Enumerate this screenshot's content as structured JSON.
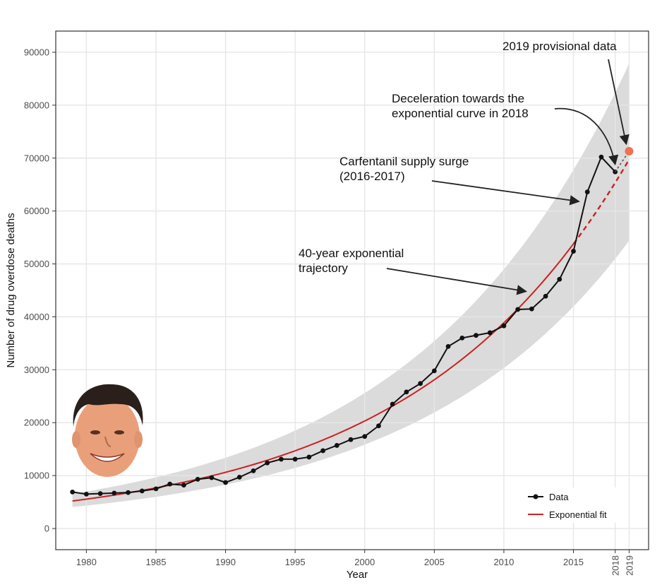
{
  "chart_data": {
    "type": "line",
    "xlabel": "Year",
    "ylabel": "Number of drug overdose deaths",
    "xlim": [
      1977.8,
      2020.4
    ],
    "ylim": [
      -4000,
      94000
    ],
    "x_ticks": [
      1980,
      1985,
      1990,
      1995,
      2000,
      2005,
      2010,
      2015
    ],
    "x_ticks_rotated": [
      2018,
      2019
    ],
    "y_ticks": [
      0,
      10000,
      20000,
      30000,
      40000,
      50000,
      60000,
      70000,
      80000,
      90000
    ],
    "grid": true,
    "legend_position": "bottom-right",
    "series": [
      {
        "name": "Data",
        "color": "#111111",
        "x": [
          1979,
          1980,
          1981,
          1982,
          1983,
          1984,
          1985,
          1986,
          1987,
          1988,
          1989,
          1990,
          1991,
          1992,
          1993,
          1994,
          1995,
          1996,
          1997,
          1998,
          1999,
          2000,
          2001,
          2002,
          2003,
          2004,
          2005,
          2006,
          2007,
          2008,
          2009,
          2010,
          2011,
          2012,
          2013,
          2014,
          2015,
          2016,
          2017,
          2018
        ],
        "y": [
          6900,
          6500,
          6600,
          6700,
          6800,
          7100,
          7500,
          8400,
          8200,
          9300,
          9600,
          8700,
          9700,
          10900,
          12400,
          13100,
          13100,
          13500,
          14700,
          15700,
          16800,
          17400,
          19400,
          23500,
          25800,
          27400,
          29800,
          34400,
          36000,
          36500,
          37000,
          38300,
          41400,
          41500,
          43900,
          47100,
          52400,
          63600,
          70200,
          67400
        ]
      },
      {
        "name": "Exponential fit",
        "color": "#cc2222",
        "model": {
          "a": 5200,
          "base_year": 1979,
          "growth_rate": 0.0649
        },
        "dashed_from": 2015,
        "band": {
          "low_factor": 0.78,
          "high_factor": 1.26
        }
      }
    ],
    "provisional_point": {
      "x": 2019,
      "y": 71300,
      "color": "#f07050"
    },
    "annotations": [
      {
        "lines": [
          "2019 provisional data"
        ],
        "arrow_to": {
          "x": 2019,
          "y": 71300
        }
      },
      {
        "lines": [
          "Deceleration towards the",
          "exponential curve in 2018"
        ],
        "arrow_to": {
          "x": 2018,
          "y": 68000
        }
      },
      {
        "lines": [
          "Carfentanil supply surge",
          "(2016-2017)"
        ],
        "arrow_to": {
          "x": 2015.4,
          "y": 61000
        }
      },
      {
        "lines": [
          "40-year exponential",
          "trajectory"
        ],
        "arrow_to": {
          "x": 2011.6,
          "y": 44000
        }
      }
    ]
  },
  "decorations": {
    "portrait": {
      "icon": "portrait-face-icon",
      "skin": "#e9a07a",
      "hair": "#2a1f1a"
    }
  }
}
